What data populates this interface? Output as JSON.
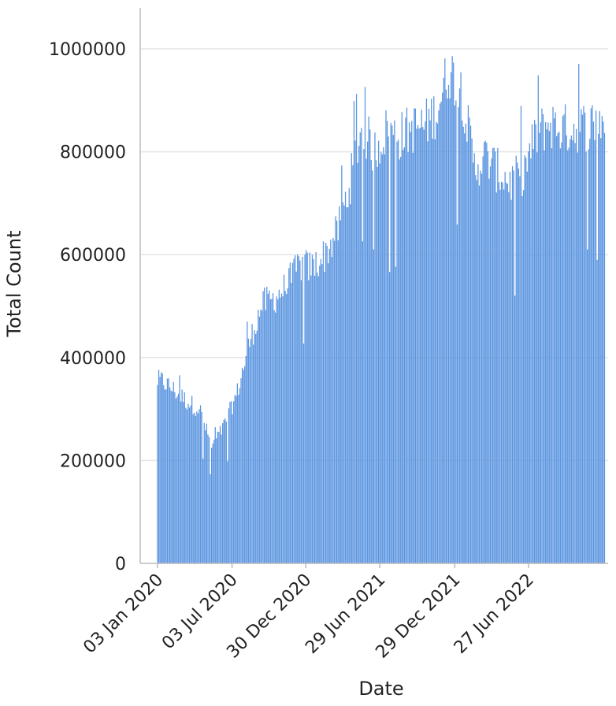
{
  "chart_data": {
    "type": "bar",
    "title": "",
    "xlabel": "Date",
    "ylabel": "Total Count",
    "ylim": [
      0,
      1080000
    ],
    "y_ticks": [
      "0",
      "200000",
      "400000",
      "600000",
      "800000",
      "1000000"
    ],
    "x_tick_labels": [
      "03 Jan 2020",
      "03 Jul 2020",
      "30 Dec 2020",
      "29 Jun 2021",
      "29 Dec 2021",
      "27 Jun 2022"
    ],
    "grid": true,
    "bar_color": "#5b95e0",
    "x_start": "2020-01-03",
    "x_end": "2022-12-31",
    "bar_interval_days": 3,
    "series": [
      {
        "values_by_month": [
          [
            "2020-01",
            355000
          ],
          [
            "2020-02",
            335000
          ],
          [
            "2020-03",
            315000
          ],
          [
            "2020-04",
            300000
          ],
          [
            "2020-05",
            225000
          ],
          [
            "2020-06",
            270000
          ],
          [
            "2020-07",
            330000
          ],
          [
            "2020-08",
            430000
          ],
          [
            "2020-09",
            505000
          ],
          [
            "2020-10",
            515000
          ],
          [
            "2020-11",
            540000
          ],
          [
            "2020-12",
            580000
          ],
          [
            "2021-01",
            575000
          ],
          [
            "2021-02",
            600000
          ],
          [
            "2021-03",
            640000
          ],
          [
            "2021-04",
            730000
          ],
          [
            "2021-05",
            850000
          ],
          [
            "2021-06",
            800000
          ],
          [
            "2021-07",
            840000
          ],
          [
            "2021-08",
            830000
          ],
          [
            "2021-09",
            845000
          ],
          [
            "2021-10",
            850000
          ],
          [
            "2021-11",
            880000
          ],
          [
            "2021-12",
            960000
          ],
          [
            "2022-01",
            920000
          ],
          [
            "2022-02",
            770000
          ],
          [
            "2022-03",
            790000
          ],
          [
            "2022-04",
            760000
          ],
          [
            "2022-05",
            740000
          ],
          [
            "2022-06",
            760000
          ],
          [
            "2022-07",
            830000
          ],
          [
            "2022-08",
            855000
          ],
          [
            "2022-09",
            845000
          ],
          [
            "2022-10",
            845000
          ],
          [
            "2022-11",
            850000
          ],
          [
            "2022-12",
            860000
          ]
        ]
      }
    ]
  }
}
